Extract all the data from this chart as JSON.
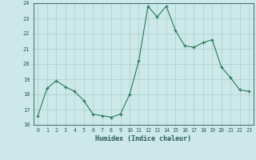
{
  "x": [
    0,
    1,
    2,
    3,
    4,
    5,
    6,
    7,
    8,
    9,
    10,
    11,
    12,
    13,
    14,
    15,
    16,
    17,
    18,
    19,
    20,
    21,
    22,
    23
  ],
  "y": [
    16.6,
    18.4,
    18.9,
    18.5,
    18.2,
    17.6,
    16.7,
    16.6,
    16.5,
    16.7,
    18.0,
    20.2,
    23.8,
    23.1,
    23.8,
    22.2,
    21.2,
    21.1,
    21.4,
    21.6,
    19.8,
    19.1,
    18.3,
    18.2
  ],
  "xlim": [
    -0.5,
    23.5
  ],
  "ylim": [
    16,
    24
  ],
  "yticks": [
    16,
    17,
    18,
    19,
    20,
    21,
    22,
    23,
    24
  ],
  "xticks": [
    0,
    1,
    2,
    3,
    4,
    5,
    6,
    7,
    8,
    9,
    10,
    11,
    12,
    13,
    14,
    15,
    16,
    17,
    18,
    19,
    20,
    21,
    22,
    23
  ],
  "xlabel": "Humidex (Indice chaleur)",
  "line_color": "#2a7a5a",
  "marker": "+",
  "bg_color": "#cce8e8",
  "grid_color": "#aacece",
  "font_color": "#2a5858"
}
